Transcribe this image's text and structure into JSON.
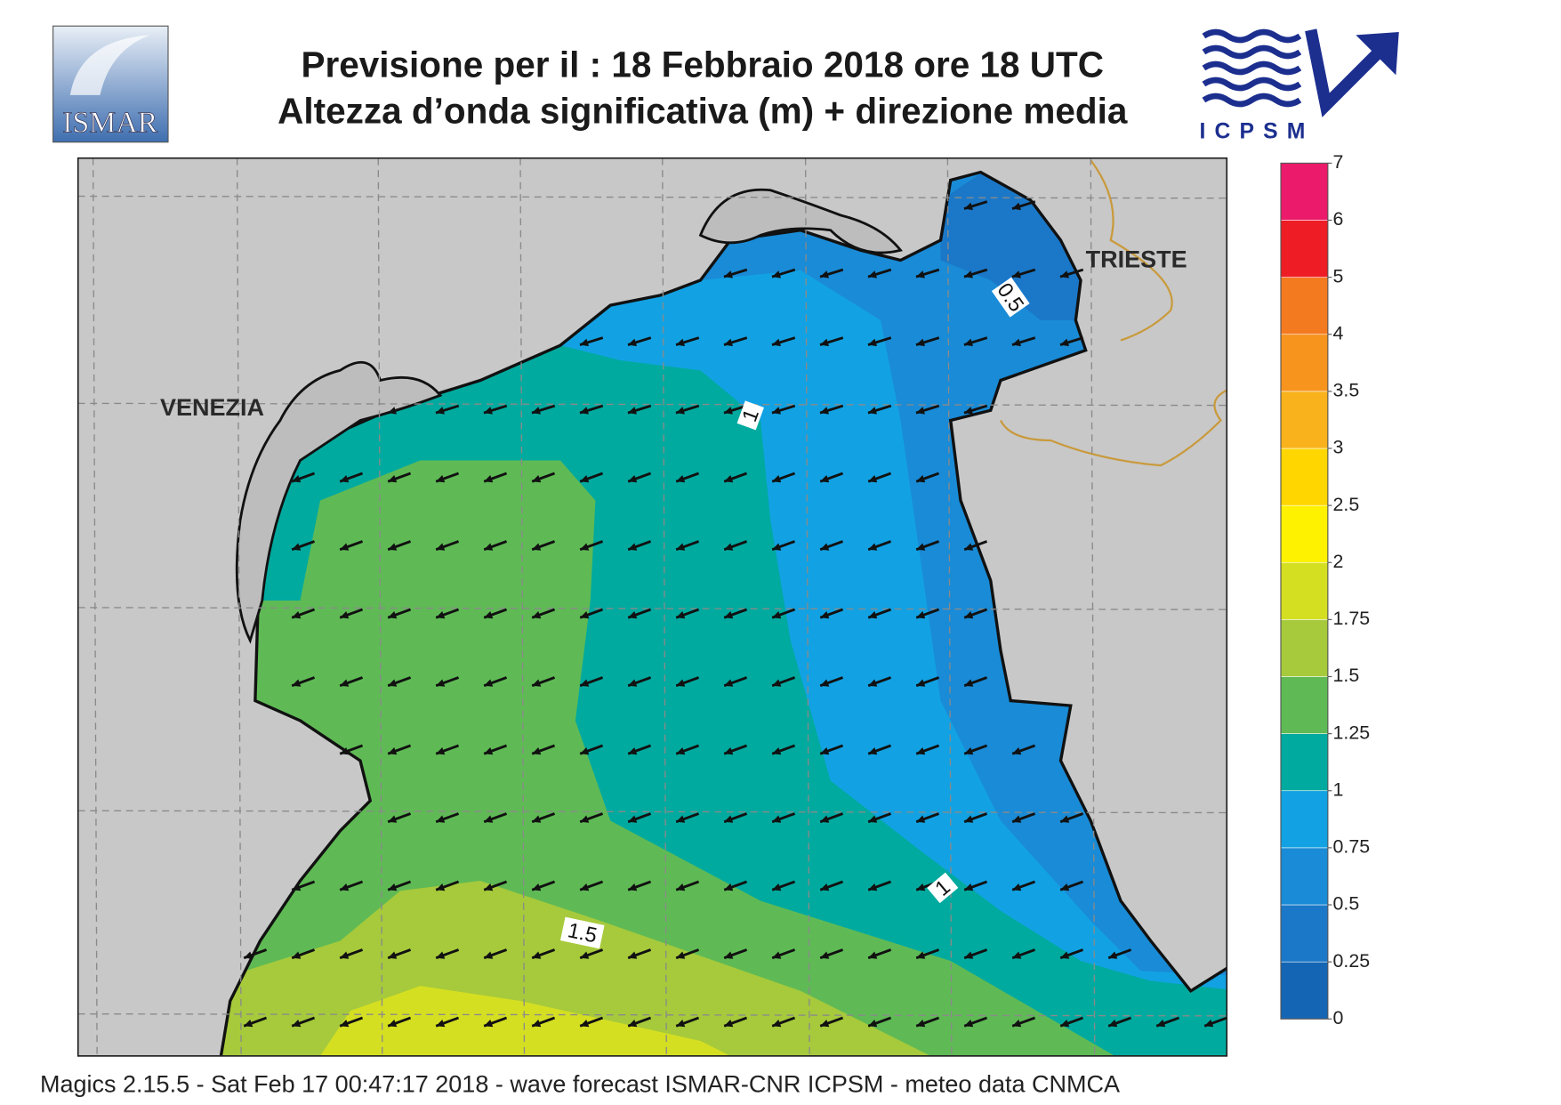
{
  "header": {
    "title_line1": "Previsione per il  :  18  Febbraio 2018   ore 18 UTC",
    "title_line2": "Altezza d’onda significativa (m) + direzione media"
  },
  "logos": {
    "left": "ISMAR",
    "right": "ICPSM"
  },
  "map": {
    "places": [
      "VENEZIA",
      "TRIESTE"
    ],
    "contour_labels": [
      "0.5",
      "1",
      "1",
      "1.5"
    ]
  },
  "colorbar": {
    "levels": [
      0,
      0.25,
      0.5,
      0.75,
      1,
      1.25,
      1.5,
      1.75,
      2,
      2.5,
      3,
      3.5,
      4,
      5,
      6,
      7
    ],
    "colors": [
      "#1565b5",
      "#1b78c8",
      "#1a8bd6",
      "#12a2e3",
      "#00aa9f",
      "#5fba55",
      "#a6ca3b",
      "#d5df22",
      "#fff200",
      "#ffd600",
      "#f9b21b",
      "#f7941d",
      "#f47a20",
      "#ee1c24",
      "#ec1a6a"
    ]
  },
  "footer": "Magics 2.15.5 - Sat Feb 17 00:47:17 2018 - wave forecast  ISMAR-CNR  ICPSM - meteo data   CNMCA"
}
